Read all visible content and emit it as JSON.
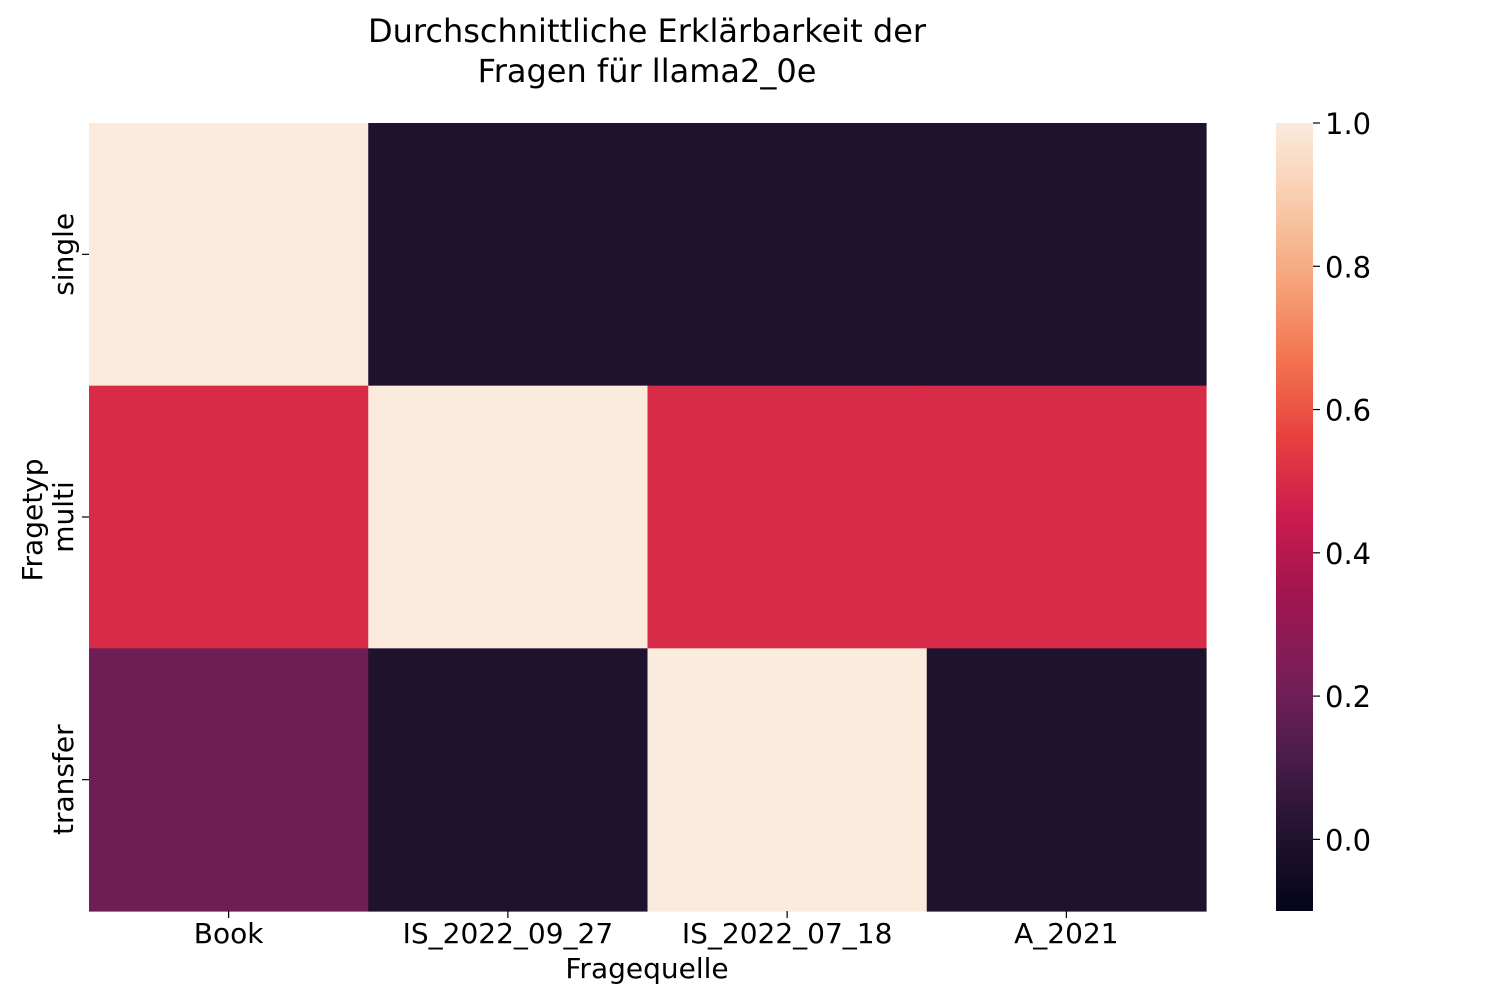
{
  "chart_data": {
    "type": "heatmap",
    "title_line1": "Durchschnittliche Erklärbarkeit der",
    "title_line2": "Fragen für llama2_0e",
    "xlabel": "Fragequelle",
    "ylabel": "Fragetyp",
    "x_categories": [
      "Book",
      "IS_2022_09_27",
      "IS_2022_07_18",
      "A_2021"
    ],
    "y_categories": [
      "single",
      "multi",
      "transfer"
    ],
    "values": [
      [
        1.0,
        0.0,
        0.0,
        0.0
      ],
      [
        0.5,
        1.0,
        0.5,
        0.5
      ],
      [
        0.2,
        0.0,
        1.0,
        0.0
      ]
    ],
    "colorbar": {
      "vmin": -0.1,
      "vmax": 1.0,
      "ticks": [
        0.0,
        0.2,
        0.4,
        0.6,
        0.8,
        1.0
      ],
      "tick_labels": [
        "0.0",
        "0.2",
        "0.4",
        "0.6",
        "0.8",
        "1.0"
      ],
      "colormap": "rocket",
      "stops": [
        "#03051a",
        "#221331",
        "#4c1d4b",
        "#7a1e59",
        "#a1154f",
        "#cb1b4f",
        "#e83f3f",
        "#f3744f",
        "#f6a47c",
        "#f9cbab",
        "#faebdd"
      ]
    }
  }
}
